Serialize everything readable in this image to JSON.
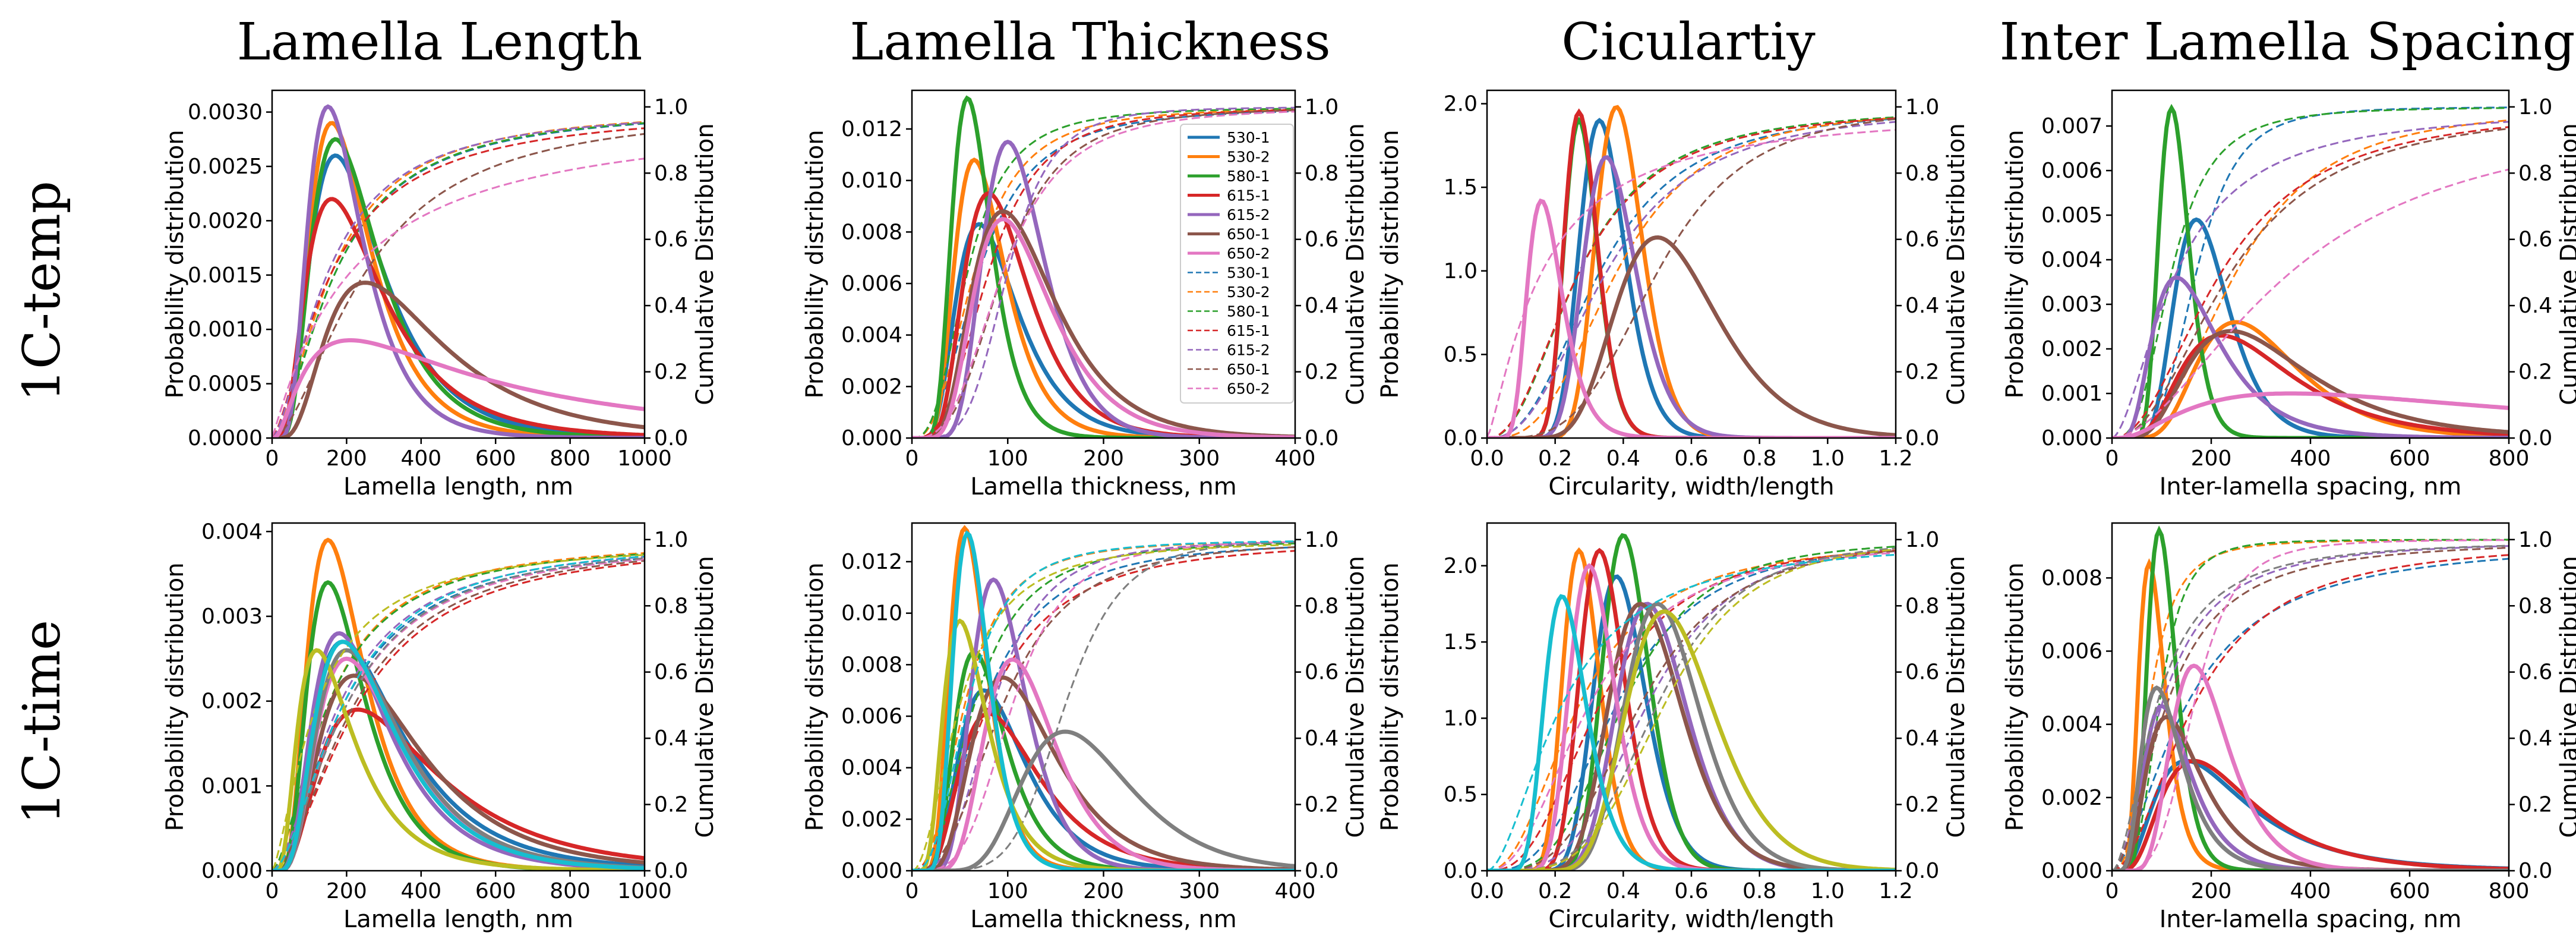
{
  "figure": {
    "column_titles": [
      "Lamella Length",
      "Lamella Thickness",
      "Ciculartiy",
      "Inter Lamella Spacing"
    ],
    "row_labels": [
      "1C-temp",
      "1C-time"
    ],
    "right_axis_label": "Cumulative Distribution"
  },
  "palette": {
    "530-1": "#1f77b4",
    "530-2": "#ff7f0e",
    "580-1": "#2ca02c",
    "615-1": "#d62728",
    "615-2": "#9467bd",
    "650-1": "#8c564b",
    "650-2": "#e377c2",
    "extra-gray": "#7f7f7f",
    "extra-olive": "#bcbd22",
    "extra-cyan": "#17becf"
  },
  "legend": {
    "solid": [
      "530-1",
      "530-2",
      "580-1",
      "615-1",
      "615-2",
      "650-1",
      "650-2"
    ],
    "dashed": [
      "530-1",
      "530-2",
      "580-1",
      "615-1",
      "615-2",
      "650-1",
      "650-2"
    ]
  },
  "chart_data": [
    {
      "type": "line",
      "row": "1C-temp",
      "column": "Lamella Length",
      "xlabel": "Lamella length, nm",
      "ylabel": "Probability distribution",
      "y2label": "Cumulative Distribution",
      "xlim": [
        0,
        1000
      ],
      "ylim": [
        0,
        0.0032
      ],
      "y2lim": [
        0,
        1.05
      ],
      "xticks": [
        0,
        200,
        400,
        600,
        800,
        1000
      ],
      "yticks": [
        0,
        0.0005,
        0.001,
        0.0015,
        0.002,
        0.0025,
        0.003
      ],
      "ytick_labels": [
        "0.0000",
        "0.0005",
        "0.0010",
        "0.0015",
        "0.0020",
        "0.0025",
        "0.0030"
      ],
      "y2ticks": [
        0,
        0.2,
        0.4,
        0.6,
        0.8,
        1.0
      ],
      "y2tick_labels": [
        "0.0",
        "0.2",
        "0.4",
        "0.6",
        "0.8",
        "1.0"
      ],
      "series": [
        {
          "name": "530-1",
          "peak_x": 170,
          "peak_y": 0.0026,
          "spread": 0.55,
          "cdf_x90": 640
        },
        {
          "name": "530-2",
          "peak_x": 160,
          "peak_y": 0.0029,
          "spread": 0.5,
          "cdf_x90": 600
        },
        {
          "name": "580-1",
          "peak_x": 170,
          "peak_y": 0.00275,
          "spread": 0.52,
          "cdf_x90": 630
        },
        {
          "name": "615-1",
          "peak_x": 160,
          "peak_y": 0.0022,
          "spread": 0.62,
          "cdf_x90": 720
        },
        {
          "name": "615-2",
          "peak_x": 150,
          "peak_y": 0.00305,
          "spread": 0.48,
          "cdf_x90": 600
        },
        {
          "name": "650-1",
          "peak_x": 250,
          "peak_y": 0.00143,
          "spread": 0.6,
          "cdf_x90": 880
        },
        {
          "name": "650-2",
          "peak_x": 210,
          "peak_y": 0.0009,
          "spread": 1.0,
          "cdf_x90": 1600
        }
      ]
    },
    {
      "type": "line",
      "row": "1C-temp",
      "column": "Lamella Thickness",
      "xlabel": "Lamella thickness, nm",
      "ylabel": "Probability distribution",
      "y2label": "Cumulative Distribution",
      "xlim": [
        0,
        400
      ],
      "ylim": [
        0,
        0.0135
      ],
      "y2lim": [
        0,
        1.05
      ],
      "xticks": [
        0,
        100,
        200,
        300,
        400
      ],
      "yticks": [
        0,
        0.002,
        0.004,
        0.006,
        0.008,
        0.01,
        0.012
      ],
      "ytick_labels": [
        "0.000",
        "0.002",
        "0.004",
        "0.006",
        "0.008",
        "0.010",
        "0.012"
      ],
      "y2ticks": [
        0,
        0.2,
        0.4,
        0.6,
        0.8,
        1.0
      ],
      "y2tick_labels": [
        "0.0",
        "0.2",
        "0.4",
        "0.6",
        "0.8",
        "1.0"
      ],
      "legend_location": "upper right",
      "series": [
        {
          "name": "530-1",
          "peak_x": 70,
          "peak_y": 0.0083,
          "spread": 0.45,
          "cdf_x90": 170
        },
        {
          "name": "530-2",
          "peak_x": 65,
          "peak_y": 0.0108,
          "spread": 0.4,
          "cdf_x90": 150
        },
        {
          "name": "580-1",
          "peak_x": 58,
          "peak_y": 0.0132,
          "spread": 0.35,
          "cdf_x90": 130
        },
        {
          "name": "615-1",
          "peak_x": 80,
          "peak_y": 0.0095,
          "spread": 0.42,
          "cdf_x90": 170
        },
        {
          "name": "615-2",
          "peak_x": 100,
          "peak_y": 0.0115,
          "spread": 0.32,
          "cdf_x90": 165
        },
        {
          "name": "650-1",
          "peak_x": 95,
          "peak_y": 0.0088,
          "spread": 0.45,
          "cdf_x90": 190
        },
        {
          "name": "650-2",
          "peak_x": 95,
          "peak_y": 0.0085,
          "spread": 0.42,
          "cdf_x90": 200
        }
      ]
    },
    {
      "type": "line",
      "row": "1C-temp",
      "column": "Ciculartiy",
      "xlabel": "Circularity, width/length",
      "ylabel": "Probability distribution",
      "y2label": "Cumulative Distribution",
      "xlim": [
        0,
        1.2
      ],
      "ylim": [
        0,
        2.08
      ],
      "y2lim": [
        0,
        1.05
      ],
      "xticks": [
        0,
        0.2,
        0.4,
        0.6,
        0.8,
        1.0,
        1.2
      ],
      "xtick_labels": [
        "0.0",
        "0.2",
        "0.4",
        "0.6",
        "0.8",
        "1.0",
        "1.2"
      ],
      "yticks": [
        0,
        0.5,
        1.0,
        1.5,
        2.0
      ],
      "ytick_labels": [
        "0.0",
        "0.5",
        "1.0",
        "1.5",
        "2.0"
      ],
      "y2ticks": [
        0,
        0.2,
        0.4,
        0.6,
        0.8,
        1.0
      ],
      "y2tick_labels": [
        "0.0",
        "0.2",
        "0.4",
        "0.6",
        "0.8",
        "1.0"
      ],
      "series": [
        {
          "name": "530-1",
          "peak_x": 0.33,
          "peak_y": 1.9,
          "spread": 0.2,
          "cdf_x90": 0.78
        },
        {
          "name": "530-2",
          "peak_x": 0.38,
          "peak_y": 1.98,
          "spread": 0.18,
          "cdf_x90": 0.8
        },
        {
          "name": "580-1",
          "peak_x": 0.27,
          "peak_y": 1.9,
          "spread": 0.18,
          "cdf_x90": 0.7
        },
        {
          "name": "615-1",
          "peak_x": 0.27,
          "peak_y": 1.95,
          "spread": 0.18,
          "cdf_x90": 0.72
        },
        {
          "name": "615-2",
          "peak_x": 0.35,
          "peak_y": 1.68,
          "spread": 0.22,
          "cdf_x90": 0.85
        },
        {
          "name": "650-1",
          "peak_x": 0.5,
          "peak_y": 1.2,
          "spread": 0.3,
          "cdf_x90": 0.9
        },
        {
          "name": "650-2",
          "peak_x": 0.16,
          "peak_y": 1.42,
          "spread": 0.32,
          "cdf_x90": 0.88
        }
      ]
    },
    {
      "type": "line",
      "row": "1C-temp",
      "column": "Inter Lamella Spacing",
      "xlabel": "Inter-lamella spacing, nm",
      "ylabel": "Probability distribution",
      "y2label": "Cumulative Distribution",
      "xlim": [
        0,
        800
      ],
      "ylim": [
        0,
        0.0078
      ],
      "y2lim": [
        0,
        1.05
      ],
      "xticks": [
        0,
        200,
        400,
        600,
        800
      ],
      "yticks": [
        0,
        0.001,
        0.002,
        0.003,
        0.004,
        0.005,
        0.006,
        0.007
      ],
      "ytick_labels": [
        "0.000",
        "0.001",
        "0.002",
        "0.003",
        "0.004",
        "0.005",
        "0.006",
        "0.007"
      ],
      "y2ticks": [
        0,
        0.2,
        0.4,
        0.6,
        0.8,
        1.0
      ],
      "y2tick_labels": [
        "0.0",
        "0.2",
        "0.4",
        "0.6",
        "0.8",
        "1.0"
      ],
      "series": [
        {
          "name": "530-1",
          "peak_x": 170,
          "peak_y": 0.0049,
          "spread": 0.32,
          "cdf_x90": 290
        },
        {
          "name": "530-2",
          "peak_x": 250,
          "peak_y": 0.0026,
          "spread": 0.4,
          "cdf_x90": 560
        },
        {
          "name": "580-1",
          "peak_x": 120,
          "peak_y": 0.0074,
          "spread": 0.25,
          "cdf_x90": 250
        },
        {
          "name": "615-1",
          "peak_x": 220,
          "peak_y": 0.0023,
          "spread": 0.5,
          "cdf_x90": 620
        },
        {
          "name": "615-2",
          "peak_x": 130,
          "peak_y": 0.0036,
          "spread": 0.5,
          "cdf_x90": 480
        },
        {
          "name": "650-1",
          "peak_x": 240,
          "peak_y": 0.0024,
          "spread": 0.5,
          "cdf_x90": 650
        },
        {
          "name": "650-2",
          "peak_x": 360,
          "peak_y": 0.001,
          "spread": 0.9,
          "cdf_x90": 1200
        }
      ]
    },
    {
      "type": "line",
      "row": "1C-time",
      "column": "Lamella Length",
      "xlabel": "Lamella length, nm",
      "ylabel": "Probability distribution",
      "y2label": "Cumulative Distribution",
      "xlim": [
        0,
        1000
      ],
      "ylim": [
        0,
        0.0041
      ],
      "y2lim": [
        0,
        1.05
      ],
      "xticks": [
        0,
        200,
        400,
        600,
        800,
        1000
      ],
      "yticks": [
        0,
        0.001,
        0.002,
        0.003,
        0.004
      ],
      "ytick_labels": [
        "0.000",
        "0.001",
        "0.002",
        "0.003",
        "0.004"
      ],
      "y2ticks": [
        0,
        0.2,
        0.4,
        0.6,
        0.8,
        1.0
      ],
      "y2tick_labels": [
        "0.0",
        "0.2",
        "0.4",
        "0.6",
        "0.8",
        "1.0"
      ],
      "series": [
        {
          "name": "530-1",
          "peak_x": 190,
          "peak_y": 0.0027,
          "spread": 0.6,
          "cdf_x90": 700
        },
        {
          "name": "530-2",
          "peak_x": 150,
          "peak_y": 0.0039,
          "spread": 0.5,
          "cdf_x90": 560
        },
        {
          "name": "580-1",
          "peak_x": 150,
          "peak_y": 0.0034,
          "spread": 0.5,
          "cdf_x90": 580
        },
        {
          "name": "615-1",
          "peak_x": 230,
          "peak_y": 0.0019,
          "spread": 0.65,
          "cdf_x90": 800
        },
        {
          "name": "615-2",
          "peak_x": 180,
          "peak_y": 0.0028,
          "spread": 0.55,
          "cdf_x90": 660
        },
        {
          "name": "650-1",
          "peak_x": 220,
          "peak_y": 0.0023,
          "spread": 0.6,
          "cdf_x90": 760
        },
        {
          "name": "650-2",
          "peak_x": 200,
          "peak_y": 0.0025,
          "spread": 0.55,
          "cdf_x90": 720
        },
        {
          "name": "extra-gray",
          "peak_x": 200,
          "peak_y": 0.0026,
          "spread": 0.55,
          "cdf_x90": 700
        },
        {
          "name": "extra-olive",
          "peak_x": 120,
          "peak_y": 0.0026,
          "spread": 0.6,
          "cdf_x90": 560
        },
        {
          "name": "extra-cyan",
          "peak_x": 190,
          "peak_y": 0.0027,
          "spread": 0.55,
          "cdf_x90": 660
        }
      ]
    },
    {
      "type": "line",
      "row": "1C-time",
      "column": "Lamella Thickness",
      "xlabel": "Lamella thickness, nm",
      "ylabel": "Probability distribution",
      "y2label": "Cumulative Distribution",
      "xlim": [
        0,
        400
      ],
      "ylim": [
        0,
        0.0135
      ],
      "y2lim": [
        0,
        1.05
      ],
      "xticks": [
        0,
        100,
        200,
        300,
        400
      ],
      "yticks": [
        0,
        0.002,
        0.004,
        0.006,
        0.008,
        0.01,
        0.012
      ],
      "ytick_labels": [
        "0.000",
        "0.002",
        "0.004",
        "0.006",
        "0.008",
        "0.010",
        "0.012"
      ],
      "y2ticks": [
        0,
        0.2,
        0.4,
        0.6,
        0.8,
        1.0
      ],
      "y2tick_labels": [
        "0.0",
        "0.2",
        "0.4",
        "0.6",
        "0.8",
        "1.0"
      ],
      "series": [
        {
          "name": "530-1",
          "peak_x": 75,
          "peak_y": 0.007,
          "spread": 0.45,
          "cdf_x90": 200
        },
        {
          "name": "530-2",
          "peak_x": 55,
          "peak_y": 0.0133,
          "spread": 0.35,
          "cdf_x90": 130
        },
        {
          "name": "580-1",
          "peak_x": 65,
          "peak_y": 0.0085,
          "spread": 0.4,
          "cdf_x90": 160
        },
        {
          "name": "615-1",
          "peak_x": 80,
          "peak_y": 0.0061,
          "spread": 0.5,
          "cdf_x90": 230
        },
        {
          "name": "615-2",
          "peak_x": 85,
          "peak_y": 0.0113,
          "spread": 0.33,
          "cdf_x90": 170
        },
        {
          "name": "650-1",
          "peak_x": 95,
          "peak_y": 0.0075,
          "spread": 0.45,
          "cdf_x90": 220
        },
        {
          "name": "650-2",
          "peak_x": 105,
          "peak_y": 0.0082,
          "spread": 0.35,
          "cdf_x90": 190
        },
        {
          "name": "extra-gray",
          "peak_x": 160,
          "peak_y": 0.0054,
          "spread": 0.35,
          "cdf_x90": 240
        },
        {
          "name": "extra-olive",
          "peak_x": 50,
          "peak_y": 0.0097,
          "spread": 0.45,
          "cdf_x90": 150
        },
        {
          "name": "extra-cyan",
          "peak_x": 58,
          "peak_y": 0.0131,
          "spread": 0.32,
          "cdf_x90": 130
        }
      ]
    },
    {
      "type": "line",
      "row": "1C-time",
      "column": "Ciculartiy",
      "xlabel": "Circularity, width/length",
      "ylabel": "Probability distribution",
      "y2label": "Cumulative Distribution",
      "xlim": [
        0,
        1.2
      ],
      "ylim": [
        0,
        2.28
      ],
      "y2lim": [
        0,
        1.05
      ],
      "xticks": [
        0,
        0.2,
        0.4,
        0.6,
        0.8,
        1.0,
        1.2
      ],
      "xtick_labels": [
        "0.0",
        "0.2",
        "0.4",
        "0.6",
        "0.8",
        "1.0",
        "1.2"
      ],
      "yticks": [
        0,
        0.5,
        1.0,
        1.5,
        2.0
      ],
      "ytick_labels": [
        "0.0",
        "0.5",
        "1.0",
        "1.5",
        "2.0"
      ],
      "y2ticks": [
        0,
        0.2,
        0.4,
        0.6,
        0.8,
        1.0
      ],
      "y2tick_labels": [
        "0.0",
        "0.2",
        "0.4",
        "0.6",
        "0.8",
        "1.0"
      ],
      "series": [
        {
          "name": "530-1",
          "peak_x": 0.38,
          "peak_y": 1.93,
          "spread": 0.2,
          "cdf_x90": 0.8
        },
        {
          "name": "530-2",
          "peak_x": 0.27,
          "peak_y": 2.1,
          "spread": 0.2,
          "cdf_x90": 0.72
        },
        {
          "name": "580-1",
          "peak_x": 0.4,
          "peak_y": 2.2,
          "spread": 0.17,
          "cdf_x90": 0.75
        },
        {
          "name": "615-1",
          "peak_x": 0.33,
          "peak_y": 2.1,
          "spread": 0.2,
          "cdf_x90": 0.76
        },
        {
          "name": "615-2",
          "peak_x": 0.47,
          "peak_y": 1.75,
          "spread": 0.22,
          "cdf_x90": 0.85
        },
        {
          "name": "650-1",
          "peak_x": 0.45,
          "peak_y": 1.75,
          "spread": 0.24,
          "cdf_x90": 0.86
        },
        {
          "name": "650-2",
          "peak_x": 0.3,
          "peak_y": 2.0,
          "spread": 0.22,
          "cdf_x90": 0.78
        },
        {
          "name": "extra-gray",
          "peak_x": 0.5,
          "peak_y": 1.75,
          "spread": 0.22,
          "cdf_x90": 0.85
        },
        {
          "name": "extra-olive",
          "peak_x": 0.52,
          "peak_y": 1.7,
          "spread": 0.25,
          "cdf_x90": 0.88
        },
        {
          "name": "extra-cyan",
          "peak_x": 0.22,
          "peak_y": 1.8,
          "spread": 0.28,
          "cdf_x90": 0.75
        }
      ]
    },
    {
      "type": "line",
      "row": "1C-time",
      "column": "Inter Lamella Spacing",
      "xlabel": "Inter-lamella spacing, nm",
      "ylabel": "Probability distribution",
      "y2label": "Cumulative Distribution",
      "xlim": [
        0,
        800
      ],
      "ylim": [
        0,
        0.0095
      ],
      "y2lim": [
        0,
        1.05
      ],
      "xticks": [
        0,
        200,
        400,
        600,
        800
      ],
      "yticks": [
        0,
        0.002,
        0.004,
        0.006,
        0.008
      ],
      "ytick_labels": [
        "0.000",
        "0.002",
        "0.004",
        "0.006",
        "0.008"
      ],
      "y2ticks": [
        0,
        0.2,
        0.4,
        0.6,
        0.8,
        1.0
      ],
      "y2tick_labels": [
        "0.0",
        "0.2",
        "0.4",
        "0.6",
        "0.8",
        "1.0"
      ],
      "series": [
        {
          "name": "530-1",
          "peak_x": 150,
          "peak_y": 0.003,
          "spread": 0.6,
          "cdf_x90": 560
        },
        {
          "name": "530-2",
          "peak_x": 75,
          "peak_y": 0.0084,
          "spread": 0.35,
          "cdf_x90": 160
        },
        {
          "name": "580-1",
          "peak_x": 95,
          "peak_y": 0.0093,
          "spread": 0.3,
          "cdf_x90": 170
        },
        {
          "name": "615-1",
          "peak_x": 165,
          "peak_y": 0.003,
          "spread": 0.55,
          "cdf_x90": 520
        },
        {
          "name": "615-2",
          "peak_x": 100,
          "peak_y": 0.0045,
          "spread": 0.45,
          "cdf_x90": 320
        },
        {
          "name": "650-1",
          "peak_x": 110,
          "peak_y": 0.0042,
          "spread": 0.5,
          "cdf_x90": 360
        },
        {
          "name": "650-2",
          "peak_x": 165,
          "peak_y": 0.0056,
          "spread": 0.35,
          "cdf_x90": 280
        },
        {
          "name": "extra-gray",
          "peak_x": 90,
          "peak_y": 0.005,
          "spread": 0.45,
          "cdf_x90": 300
        }
      ]
    }
  ]
}
